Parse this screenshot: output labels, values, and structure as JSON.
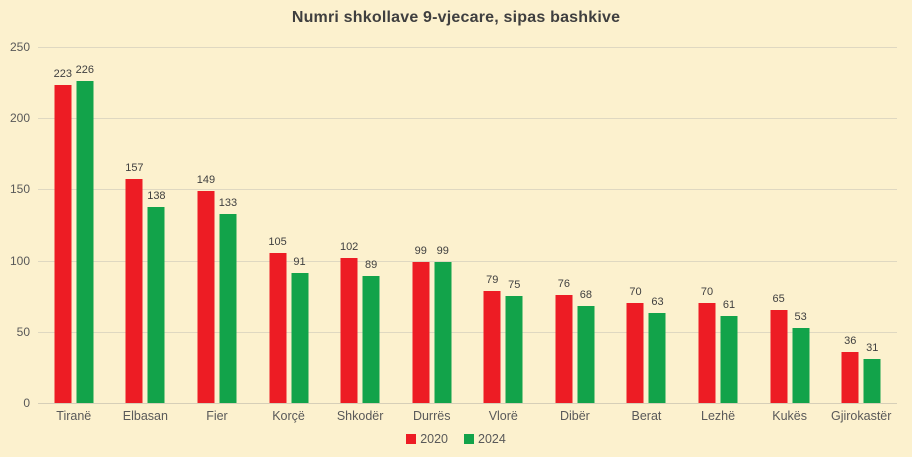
{
  "title": "Numri shkollave 9-vjecare, sipas bashkive",
  "colors": {
    "background": "#FCF1CE",
    "series_2020": "#ED1C24",
    "series_2024": "#12A34A",
    "gridline": "#DFD8C1",
    "title_text": "#3F3F3F",
    "axis_text": "#595959",
    "value_label_text": "#404040"
  },
  "chart_data": {
    "type": "bar",
    "title": "Numri shkollave 9-vjecare, sipas bashkive",
    "categories": [
      "Tiranë",
      "Elbasan",
      "Fier",
      "Korçë",
      "Shkodër",
      "Durrës",
      "Vlorë",
      "Dibër",
      "Berat",
      "Lezhë",
      "Kukës",
      "Gjirokastër"
    ],
    "series": [
      {
        "name": "2020",
        "color": "#ED1C24",
        "values": [
          223,
          157,
          149,
          105,
          102,
          99,
          79,
          76,
          70,
          70,
          65,
          36
        ]
      },
      {
        "name": "2024",
        "color": "#12A34A",
        "values": [
          226,
          138,
          133,
          91,
          89,
          99,
          75,
          68,
          63,
          61,
          53,
          31
        ]
      }
    ],
    "xlabel": "",
    "ylabel": "",
    "ylim": [
      0,
      250
    ],
    "yticks": [
      0,
      50,
      100,
      150,
      200,
      250
    ],
    "grid": true,
    "data_labels": true,
    "legend_position": "bottom"
  }
}
